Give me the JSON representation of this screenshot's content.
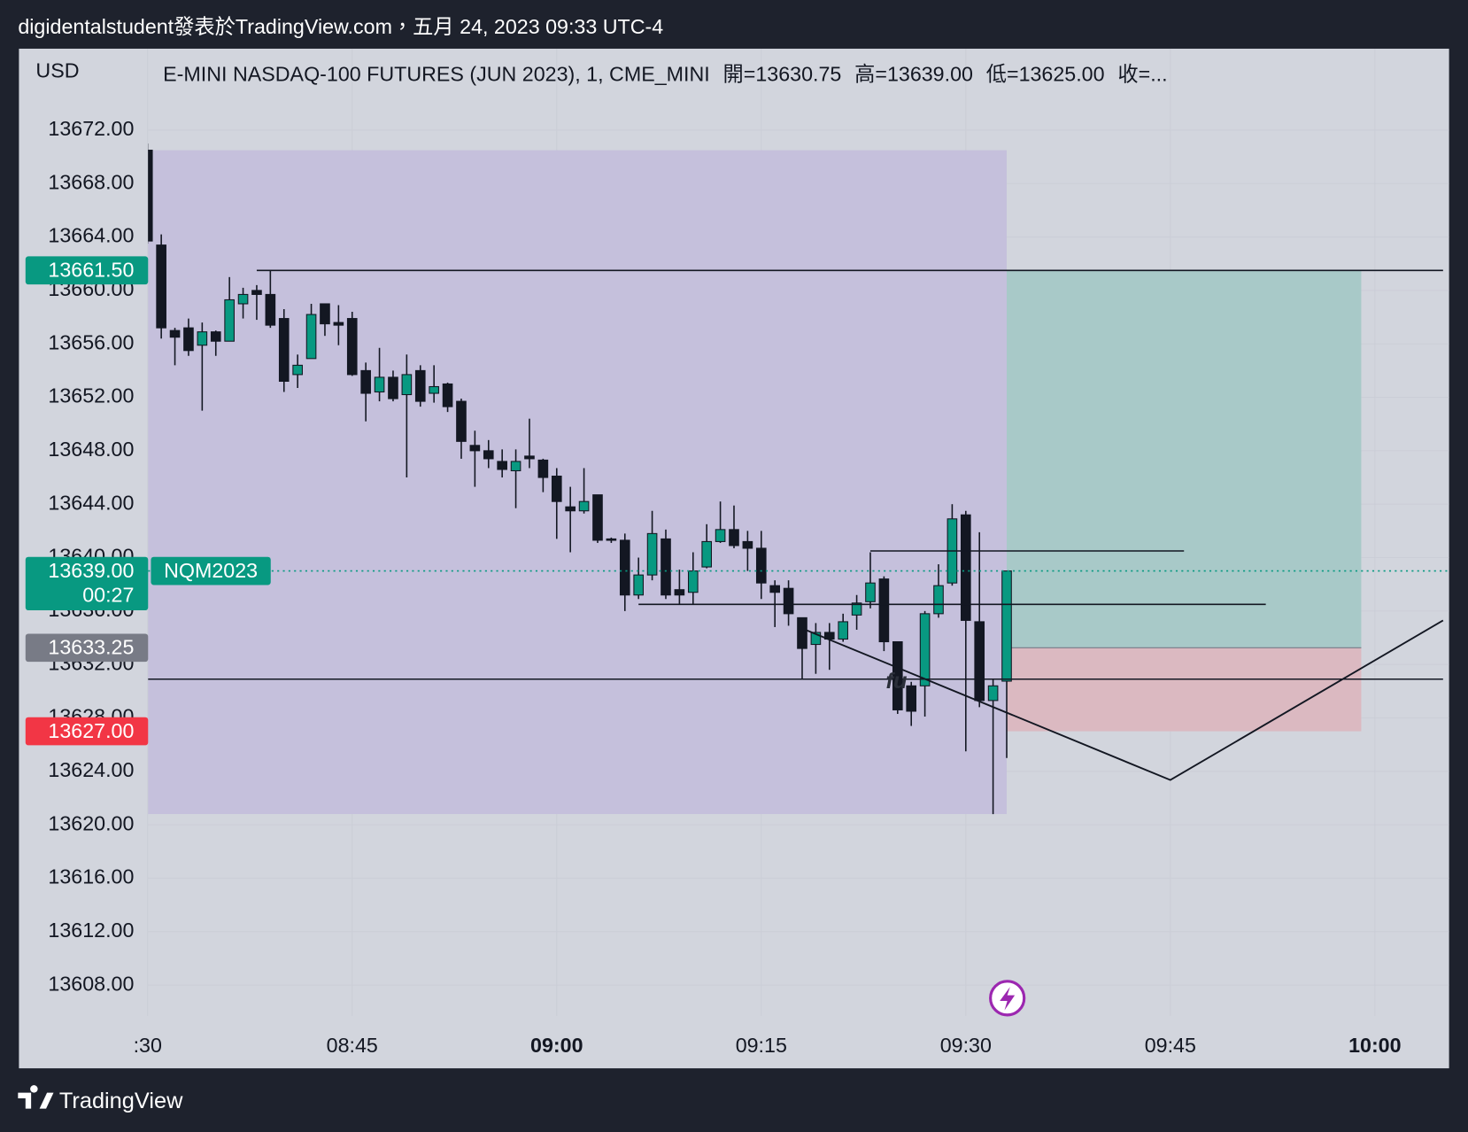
{
  "page": {
    "author_line": "digidentalstudent發表於TradingView.com，五月 24, 2023 09:33 UTC-4",
    "brand": "TradingView"
  },
  "chart_data": {
    "type": "candlestick",
    "title": "E-MINI NASDAQ-100 FUTURES (JUN 2023), 1, CME_MINI",
    "ohlc_legend": [
      "開=13630.75",
      "高=13639.00",
      "低=13625.00",
      "收=..."
    ],
    "currency": "USD",
    "x": [
      "08:30",
      "08:31",
      "08:32",
      "08:33",
      "08:34",
      "08:35",
      "08:36",
      "08:37",
      "08:38",
      "08:39",
      "08:40",
      "08:41",
      "08:42",
      "08:43",
      "08:44",
      "08:45",
      "08:46",
      "08:47",
      "08:48",
      "08:49",
      "08:50",
      "08:51",
      "08:52",
      "08:53",
      "08:54",
      "08:55",
      "08:56",
      "08:57",
      "08:58",
      "08:59",
      "09:00",
      "09:01",
      "09:02",
      "09:03",
      "09:04",
      "09:05",
      "09:06",
      "09:07",
      "09:08",
      "09:09",
      "09:10",
      "09:11",
      "09:12",
      "09:13",
      "09:14",
      "09:15",
      "09:16",
      "09:17",
      "09:18",
      "09:19",
      "09:20",
      "09:21",
      "09:22",
      "09:23",
      "09:24",
      "09:25",
      "09:26",
      "09:27",
      "09:28",
      "09:29",
      "09:30",
      "09:31",
      "09:32",
      "09:33"
    ],
    "open": [
      13670.5,
      13663.4,
      13657.0,
      13657.2,
      13655.9,
      13656.9,
      13656.2,
      13659.0,
      13660.0,
      13659.7,
      13657.9,
      13653.7,
      13654.9,
      13659.0,
      13657.6,
      13657.9,
      13654.0,
      13652.4,
      13653.5,
      13652.2,
      13654.0,
      13652.3,
      13653.0,
      13651.7,
      13648.4,
      13648.0,
      13647.2,
      13646.5,
      13647.6,
      13647.3,
      13646.1,
      13643.8,
      13643.5,
      13644.7,
      13641.4,
      13641.3,
      13637.2,
      13638.7,
      13641.4,
      13637.6,
      13637.4,
      13639.3,
      13641.2,
      13642.1,
      13641.2,
      13640.7,
      13637.9,
      13637.7,
      13635.5,
      13633.5,
      13634.4,
      13633.9,
      13635.7,
      13636.7,
      13638.4,
      13633.7,
      13630.4,
      13630.4,
      13635.8,
      13638.1,
      13643.2,
      13635.2,
      13629.3,
      13630.75
    ],
    "high": [
      13671,
      13664.2,
      13657.2,
      13657.9,
      13657.6,
      13657.0,
      13661.0,
      13660.2,
      13660.4,
      13661.5,
      13658.6,
      13655.2,
      13659.0,
      13659.0,
      13658.9,
      13658.4,
      13654.6,
      13655.7,
      13654.0,
      13655.2,
      13654.4,
      13654.4,
      13653.1,
      13651.9,
      13649.5,
      13648.8,
      13648.1,
      13648.1,
      13650.4,
      13647.4,
      13646.7,
      13645.3,
      13646.7,
      13644.7,
      13641.5,
      13641.8,
      13640.0,
      13643.5,
      13642.1,
      13639.1,
      13640.4,
      13642.5,
      13644.2,
      13643.9,
      13642.0,
      13642.0,
      13638.3,
      13638.3,
      13635.5,
      13635.1,
      13635.1,
      13635.8,
      13637.2,
      13640.4,
      13638.6,
      13633.7,
      13630.7,
      13636.0,
      13639.5,
      13644.0,
      13643.5,
      13641.9,
      13630.9,
      13639.0
    ],
    "low": [
      13663.5,
      13656.4,
      13654.4,
      13655.1,
      13651.0,
      13655.1,
      13656.2,
      13657.9,
      13657.8,
      13657.2,
      13652.4,
      13652.7,
      13654.9,
      13656.6,
      13655.9,
      13653.6,
      13650.2,
      13651.7,
      13651.7,
      13646.0,
      13651.3,
      13651.6,
      13650.9,
      13647.4,
      13645.3,
      13646.7,
      13646.0,
      13643.7,
      13646.7,
      13644.9,
      13641.4,
      13640.4,
      13643.3,
      13641.1,
      13641.1,
      13636.0,
      13636.9,
      13638.3,
      13636.9,
      13636.5,
      13636.5,
      13639.2,
      13641.1,
      13640.7,
      13639.0,
      13636.9,
      13634.8,
      13634.9,
      13630.9,
      13631.3,
      13631.6,
      13633.7,
      13634.6,
      13636.2,
      13633.0,
      13628.3,
      13627.4,
      13628.1,
      13635.5,
      13637.9,
      13625.5,
      13628.8,
      13620.8,
      13625.0
    ],
    "close": [
      13663.7,
      13657.2,
      13656.5,
      13655.5,
      13656.9,
      13656.2,
      13659.3,
      13659.7,
      13659.7,
      13657.4,
      13653.2,
      13654.4,
      13658.2,
      13657.5,
      13657.4,
      13653.7,
      13652.3,
      13653.5,
      13651.9,
      13653.7,
      13651.7,
      13652.8,
      13651.3,
      13648.7,
      13648.0,
      13647.4,
      13646.6,
      13647.2,
      13647.4,
      13646.0,
      13644.2,
      13643.5,
      13644.2,
      13641.3,
      13641.3,
      13637.2,
      13638.7,
      13641.8,
      13637.2,
      13637.2,
      13639.0,
      13641.2,
      13642.1,
      13640.9,
      13640.7,
      13638.1,
      13637.4,
      13635.8,
      13633.2,
      13634.4,
      13633.9,
      13635.2,
      13636.6,
      13638.1,
      13633.7,
      13628.6,
      13628.5,
      13635.8,
      13637.9,
      13642.9,
      13635.3,
      13629.3,
      13630.4,
      13639.0
    ],
    "up_color": "#089981",
    "down_color": "#131722",
    "xlim": [
      "08:30",
      "10:05"
    ],
    "xticks": [
      {
        "value": "08:30",
        "label": ":30"
      },
      "08:45",
      "09:00",
      "09:15",
      "09:30",
      "09:45",
      "10:00"
    ],
    "ylim": [
      13606,
      13678
    ],
    "yticks": [
      {
        "value": 13608,
        "label": "13608.00"
      },
      {
        "value": 13612,
        "label": "13612.00"
      },
      {
        "value": 13616,
        "label": "13616.00"
      },
      {
        "value": 13620,
        "label": "13620.00"
      },
      {
        "value": 13624,
        "label": "13624.00"
      },
      {
        "value": 13628,
        "label": "13628.00"
      },
      {
        "value": 13632,
        "label": "13632.00"
      },
      {
        "value": 13636,
        "label": "13636.00"
      },
      {
        "value": 13640,
        "label": "13640.00"
      },
      {
        "value": 13644,
        "label": "13644.00"
      },
      {
        "value": 13648,
        "label": "13648.00"
      },
      {
        "value": 13652,
        "label": "13652.00"
      },
      {
        "value": 13656,
        "label": "13656.00"
      },
      {
        "value": 13660,
        "label": "13660.00"
      },
      {
        "value": 13664,
        "label": "13664.00"
      },
      {
        "value": 13668,
        "label": "13668.00"
      },
      {
        "value": 13672,
        "label": "13672.00"
      }
    ],
    "grid": true,
    "price_labels": [
      {
        "value": 13661.5,
        "label": "13661.50",
        "color": "#089981"
      },
      {
        "value": 13639,
        "label": "13639.00",
        "color": "#089981",
        "countdown": "00:27",
        "symbol": "NQM2023"
      },
      {
        "value": 13633.25,
        "label": "13633.25",
        "color": "#787b86"
      },
      {
        "value": 13627,
        "label": "13627.00",
        "color": "#f23645"
      }
    ],
    "drawings": {
      "shade": {
        "x": [
          "08:30",
          "09:33"
        ],
        "y": [
          13620.8,
          13670.5
        ],
        "color": "#c5c0dc"
      },
      "hlines": [
        {
          "value": 13661.5,
          "x": [
            "08:38",
            "10:05"
          ]
        },
        {
          "value": 13640.5,
          "x": [
            "09:23",
            "09:46"
          ]
        },
        {
          "value": 13636.5,
          "x": [
            "09:06",
            "09:52"
          ]
        },
        {
          "value": 13630.9,
          "x": [
            "08:30",
            "10:05"
          ]
        }
      ],
      "position": {
        "x": [
          "09:33",
          "09:59"
        ],
        "entry": 13633.25,
        "target": 13661.5,
        "stop": 13627,
        "profit_color": "#a8c9c8",
        "loss_color": "#dbb9c1"
      },
      "path": {
        "x": [
          "09:18",
          "09:45",
          "10:05"
        ],
        "y": [
          13634.7,
          13623.35,
          13635.3
        ]
      },
      "note": {
        "label": "fu",
        "x": "09:24",
        "y": 13630.8
      }
    }
  }
}
